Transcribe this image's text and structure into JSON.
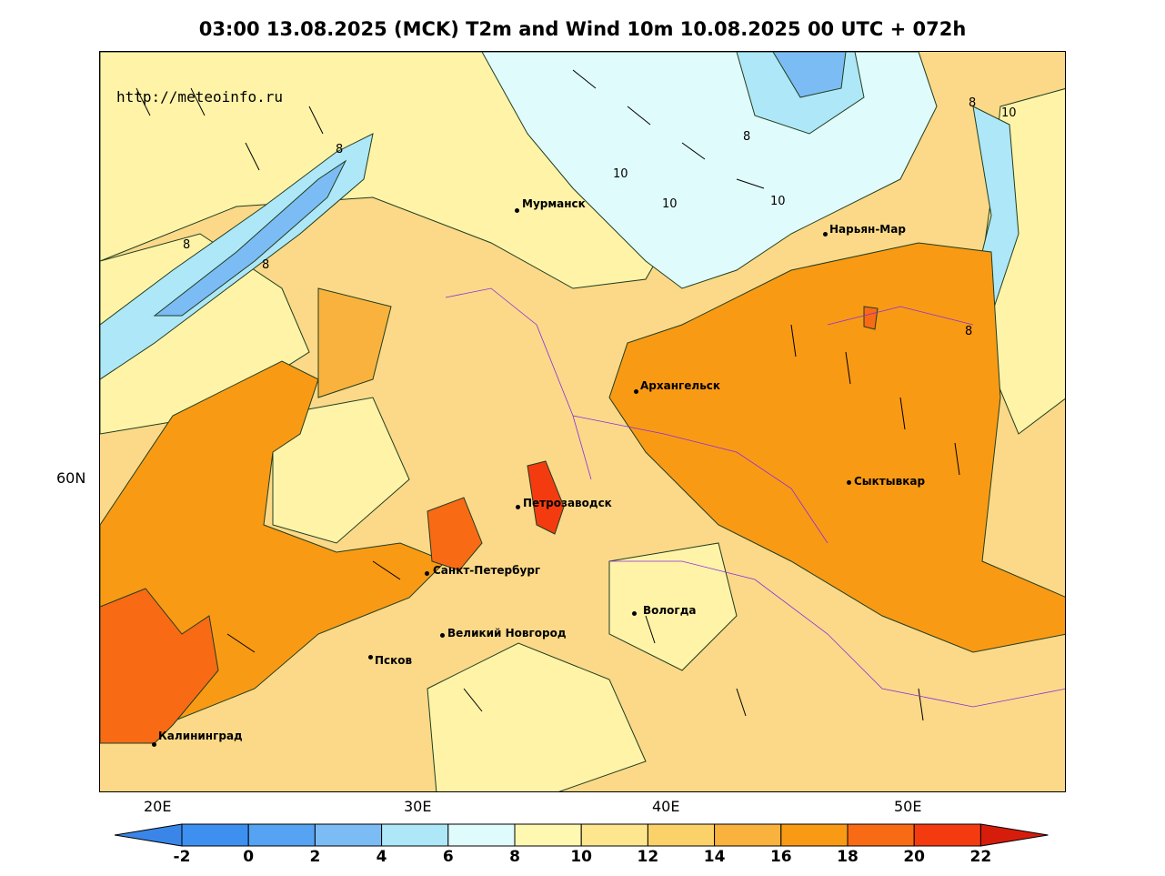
{
  "title": "03:00 13.08.2025 (MCK) T2m and Wind 10m 10.08.2025 00 UTC + 072h",
  "watermark": "http://meteoinfo.ru",
  "axes": {
    "lat_label": "60N",
    "lon_labels": [
      "20E",
      "30E",
      "40E",
      "50E"
    ]
  },
  "cities": [
    {
      "name": "Мурманск"
    },
    {
      "name": "Нарьян-Мар"
    },
    {
      "name": "Архангельск"
    },
    {
      "name": "Сыктывкар"
    },
    {
      "name": "Петрозаводск"
    },
    {
      "name": "Санкт-Петербург"
    },
    {
      "name": "Вологда"
    },
    {
      "name": "Великий Новгород"
    },
    {
      "name": "Псков"
    },
    {
      "name": "Калининград"
    }
  ],
  "contour_labels": [
    "8",
    "8",
    "8",
    "8",
    "10",
    "10",
    "10",
    "8",
    "10",
    "8"
  ],
  "colorbar": {
    "ticks": [
      "-2",
      "0",
      "2",
      "4",
      "6",
      "8",
      "10",
      "12",
      "14",
      "16",
      "18",
      "20",
      "22"
    ],
    "colors": [
      "#3a86e8",
      "#3d8ff0",
      "#55a3f2",
      "#7cbcf5",
      "#aee7f7",
      "#e0fbfc",
      "#fff8b0",
      "#fde68e",
      "#fbd26a",
      "#fab23e",
      "#f99a15",
      "#f96a14",
      "#f43b10",
      "#d61d0c"
    ]
  }
}
